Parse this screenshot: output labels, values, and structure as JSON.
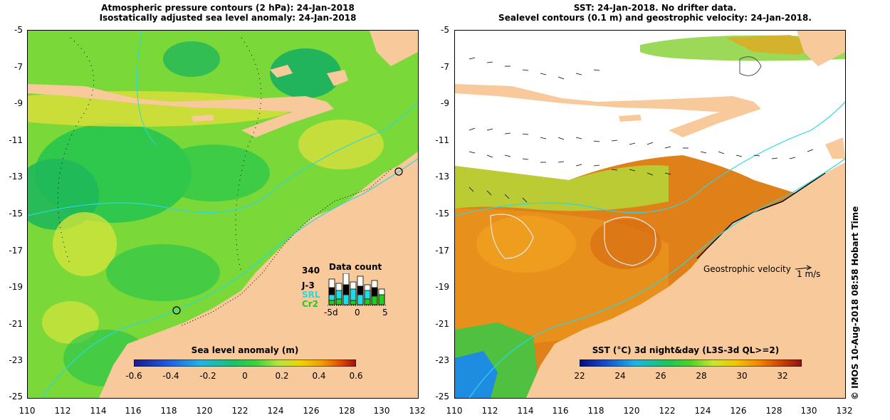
{
  "left": {
    "title_line1": "Atmospheric pressure contours (2 hPa): 24-Jan-2018",
    "title_line2": "Isostatically adjusted sea level anomaly: 24-Jan-2018",
    "colorbar_title": "Sea level anomaly (m)",
    "colorbar_ticks": [
      "-0.6",
      "-0.4",
      "-0.2",
      "0",
      "0.2",
      "0.4",
      "0.6"
    ],
    "colorbar_colors": [
      "#1a1a8c",
      "#1f5ae0",
      "#1fb4e6",
      "#17c46a",
      "#3cd23c",
      "#b4e63c",
      "#f0d200",
      "#f29a00",
      "#e24a00",
      "#a01010"
    ],
    "data_count": {
      "title": "Data count",
      "max_label": "340",
      "satellites": [
        "J-3",
        "SRL",
        "Cr2"
      ],
      "satellite_colors": [
        "#000000",
        "#1fdce6",
        "#22cc22"
      ],
      "x_labels": [
        "-5d",
        "0",
        "5"
      ]
    }
  },
  "right": {
    "title_line1": "SST: 24-Jan-2018. No drifter data.",
    "title_line2": "Sealevel contours (0.1 m) and geostrophic velocity: 24-Jan-2018.",
    "colorbar_title": "SST (°C) 3d night&day (L3S-3d QL>=2)",
    "colorbar_ticks": [
      "22",
      "24",
      "26",
      "28",
      "30",
      "32"
    ],
    "colorbar_colors": [
      "#0a0a80",
      "#1450d2",
      "#1eb4e6",
      "#19c85a",
      "#50d228",
      "#c8e632",
      "#f0c800",
      "#f08c00",
      "#d24600",
      "#8c1410"
    ],
    "velocity_label": "Geostrophic velocity",
    "velocity_scale": "1 m/s"
  },
  "y_ticks": [
    "-5",
    "-7",
    "-9",
    "-11",
    "-13",
    "-15",
    "-17",
    "-19",
    "-21",
    "-23",
    "-25"
  ],
  "x_ticks": [
    "110",
    "112",
    "114",
    "116",
    "118",
    "120",
    "122",
    "124",
    "126",
    "128",
    "130",
    "132"
  ],
  "credit": "© IMOS 10-Aug-2018 08:58 Hobart Time",
  "colors": {
    "land": "#f7c99b",
    "ocean_base": "#7ad838",
    "no_data": "#ffffff"
  }
}
